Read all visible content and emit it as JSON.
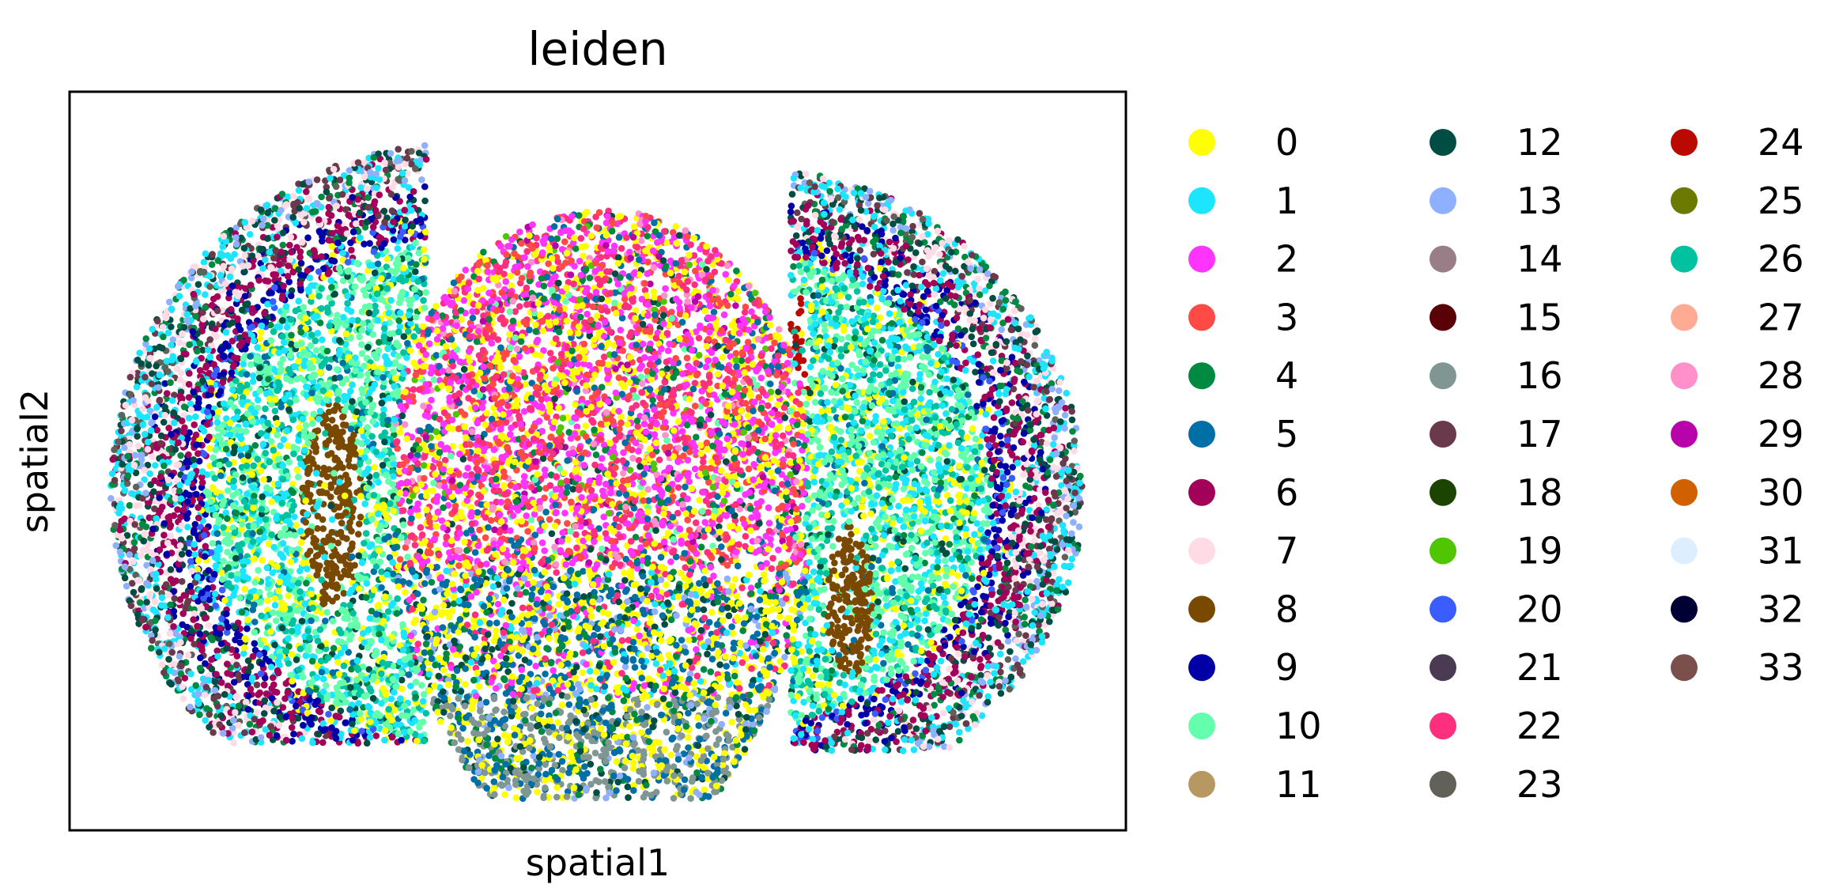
{
  "chart_data": {
    "type": "scatter",
    "title": "leiden",
    "xlabel": "spatial1",
    "ylabel": "spatial2",
    "grid": false,
    "ticks": false,
    "legend_position": "right",
    "legend_columns": 3,
    "legend": [
      {
        "label": "0",
        "color": "#ffff00"
      },
      {
        "label": "1",
        "color": "#1ce6ff"
      },
      {
        "label": "2",
        "color": "#ff34ff"
      },
      {
        "label": "3",
        "color": "#ff4a46"
      },
      {
        "label": "4",
        "color": "#008941"
      },
      {
        "label": "5",
        "color": "#006fa6"
      },
      {
        "label": "6",
        "color": "#a30059"
      },
      {
        "label": "7",
        "color": "#ffdbe5"
      },
      {
        "label": "8",
        "color": "#7a4900"
      },
      {
        "label": "9",
        "color": "#0000a6"
      },
      {
        "label": "10",
        "color": "#63ffac"
      },
      {
        "label": "11",
        "color": "#b79762"
      },
      {
        "label": "12",
        "color": "#004d43"
      },
      {
        "label": "13",
        "color": "#8fb0ff"
      },
      {
        "label": "14",
        "color": "#997d87"
      },
      {
        "label": "15",
        "color": "#5a0007"
      },
      {
        "label": "16",
        "color": "#809693"
      },
      {
        "label": "17",
        "color": "#6a3a4c"
      },
      {
        "label": "18",
        "color": "#1b4400"
      },
      {
        "label": "19",
        "color": "#4fc601"
      },
      {
        "label": "20",
        "color": "#3b5dff"
      },
      {
        "label": "21",
        "color": "#4a3b53"
      },
      {
        "label": "22",
        "color": "#ff2f80"
      },
      {
        "label": "23",
        "color": "#61615a"
      },
      {
        "label": "24",
        "color": "#ba0900"
      },
      {
        "label": "25",
        "color": "#6b7900"
      },
      {
        "label": "26",
        "color": "#00c2a0"
      },
      {
        "label": "27",
        "color": "#ffaa92"
      },
      {
        "label": "28",
        "color": "#ff90c9"
      },
      {
        "label": "29",
        "color": "#b903aa"
      },
      {
        "label": "30",
        "color": "#d16100"
      },
      {
        "label": "31",
        "color": "#ddefff"
      },
      {
        "label": "32",
        "color": "#000035"
      },
      {
        "label": "33",
        "color": "#7b4f4b"
      }
    ]
  }
}
